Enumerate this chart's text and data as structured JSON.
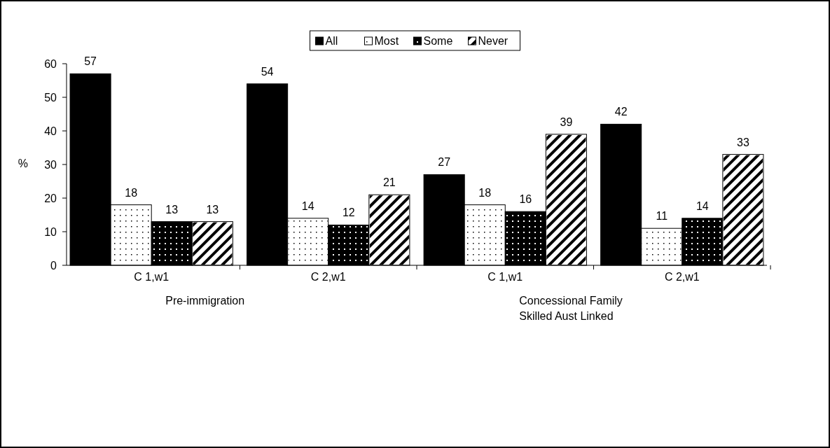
{
  "chart_data": {
    "type": "bar",
    "categories": [
      "C 1,w1",
      "C 2,w1",
      "C 1,w1",
      "C 2,w1"
    ],
    "series": [
      {
        "name": "All",
        "color": "#000000",
        "values": [
          57,
          54,
          27,
          42
        ]
      },
      {
        "name": "Most",
        "color": "#ffffff",
        "values": [
          18,
          14,
          18,
          11
        ]
      },
      {
        "name": "Some",
        "color": "#000000",
        "values": [
          13,
          12,
          16,
          14
        ]
      },
      {
        "name": "Never",
        "color": "#ffffff",
        "values": [
          13,
          21,
          39,
          33
        ]
      }
    ],
    "ylabel": "%",
    "ylim": [
      0,
      60
    ],
    "yticks": [
      0,
      10,
      20,
      30,
      40,
      50,
      60
    ],
    "data_labels": true,
    "legend": "top",
    "grid": false,
    "annotations": [
      "Pre-immigration",
      "Concessional Family\nSkilled Aust Linked"
    ]
  }
}
